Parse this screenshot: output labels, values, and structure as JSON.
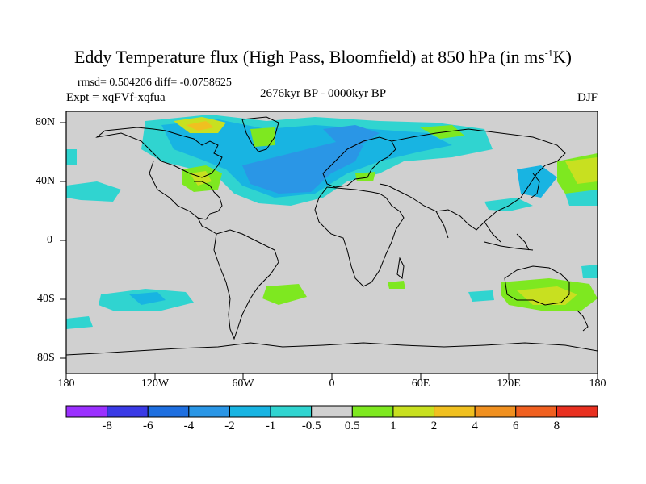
{
  "header": {
    "title_main": "Eddy Temperature flux (High Pass, Bloomfield) at 850 hPa (in ms",
    "title_sup": "-1",
    "title_end": "K)",
    "stats": "rmsd= 0.504206 diff= -0.0758625",
    "expt": "Expt = xqFVf-xqfua",
    "period": "2676kyr BP - 0000kyr BP",
    "season": "DJF"
  },
  "axes": {
    "lat_labels": [
      "80N",
      "40N",
      "0",
      "40S",
      "80S"
    ],
    "lon_labels": [
      "180",
      "120W",
      "60W",
      "0",
      "60E",
      "120E",
      "180"
    ]
  },
  "colorbar": {
    "labels": [
      "-8",
      "-6",
      "-4",
      "-2",
      "-1",
      "-0.5",
      "0.5",
      "1",
      "2",
      "4",
      "6",
      "8"
    ],
    "colors": [
      "#9b30ff",
      "#3a3ae6",
      "#1e6fe0",
      "#2a96e6",
      "#18b4e2",
      "#30d4d0",
      "#d0d0d0",
      "#7ee820",
      "#c8e020",
      "#f0c020",
      "#f09020",
      "#f06020",
      "#e83020"
    ]
  },
  "colors": {
    "land_bg": "#d0d0d0",
    "coastline": "#000000"
  }
}
